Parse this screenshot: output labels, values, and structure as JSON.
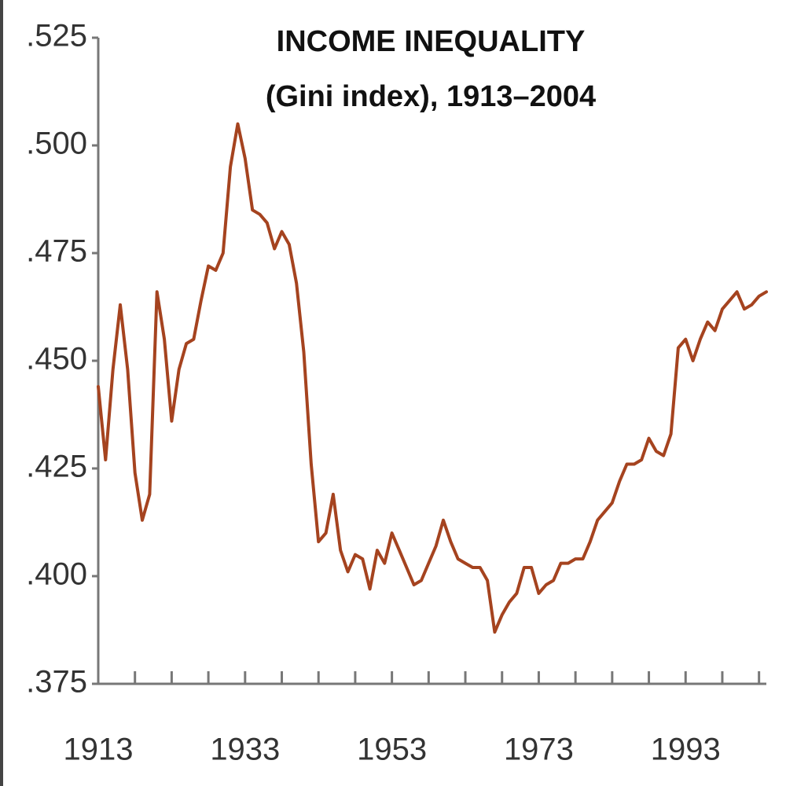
{
  "chart_data": {
    "type": "line",
    "title": "INCOME INEQUALITY",
    "subtitle": "(Gini index), 1913–2004",
    "x": [
      1913,
      1914,
      1915,
      1916,
      1917,
      1918,
      1919,
      1920,
      1921,
      1922,
      1923,
      1924,
      1925,
      1926,
      1927,
      1928,
      1929,
      1930,
      1931,
      1932,
      1933,
      1934,
      1935,
      1936,
      1937,
      1938,
      1939,
      1940,
      1941,
      1942,
      1943,
      1944,
      1945,
      1946,
      1947,
      1948,
      1949,
      1950,
      1951,
      1952,
      1953,
      1954,
      1955,
      1956,
      1957,
      1958,
      1959,
      1960,
      1961,
      1962,
      1963,
      1964,
      1965,
      1966,
      1967,
      1968,
      1969,
      1970,
      1971,
      1972,
      1973,
      1974,
      1975,
      1976,
      1977,
      1978,
      1979,
      1980,
      1981,
      1982,
      1983,
      1984,
      1985,
      1986,
      1987,
      1988,
      1989,
      1990,
      1991,
      1992,
      1993,
      1994,
      1995,
      1996,
      1997,
      1998,
      1999,
      2000,
      2001,
      2002,
      2003,
      2004
    ],
    "series": [
      {
        "name": "Gini index",
        "color": "#a5431f",
        "values": [
          0.444,
          0.427,
          0.448,
          0.463,
          0.448,
          0.424,
          0.413,
          0.419,
          0.466,
          0.455,
          0.436,
          0.448,
          0.454,
          0.455,
          0.464,
          0.472,
          0.471,
          0.475,
          0.495,
          0.505,
          0.497,
          0.485,
          0.484,
          0.482,
          0.476,
          0.48,
          0.477,
          0.468,
          0.452,
          0.426,
          0.408,
          0.41,
          0.419,
          0.406,
          0.401,
          0.405,
          0.404,
          0.397,
          0.406,
          0.403,
          0.41,
          0.406,
          0.402,
          0.398,
          0.399,
          0.403,
          0.407,
          0.413,
          0.408,
          0.404,
          0.403,
          0.402,
          0.402,
          0.399,
          0.387,
          0.391,
          0.394,
          0.396,
          0.402,
          0.402,
          0.396,
          0.398,
          0.399,
          0.403,
          0.403,
          0.404,
          0.404,
          0.408,
          0.413,
          0.415,
          0.417,
          0.422,
          0.426,
          0.426,
          0.427,
          0.432,
          0.429,
          0.428,
          0.433,
          0.453,
          0.455,
          0.45,
          0.455,
          0.459,
          0.457,
          0.462,
          0.464,
          0.466,
          0.462,
          0.463,
          0.465,
          0.466
        ]
      }
    ],
    "xlim": [
      1913,
      2004
    ],
    "xticks": [
      1913,
      1933,
      1953,
      1973,
      1993
    ],
    "x_minor_ticks": [
      1918,
      1923,
      1928,
      1938,
      1943,
      1948,
      1958,
      1963,
      1968,
      1978,
      1983,
      1988,
      1998,
      2003
    ],
    "ylim": [
      0.375,
      0.525
    ],
    "yticks": [
      {
        "value": 0.375,
        "label": ".375"
      },
      {
        "value": 0.4,
        "label": ".400"
      },
      {
        "value": 0.425,
        "label": ".425"
      },
      {
        "value": 0.45,
        "label": ".450"
      },
      {
        "value": 0.475,
        "label": ".475"
      },
      {
        "value": 0.5,
        "label": ".500"
      },
      {
        "value": 0.525,
        "label": ".525"
      }
    ]
  }
}
